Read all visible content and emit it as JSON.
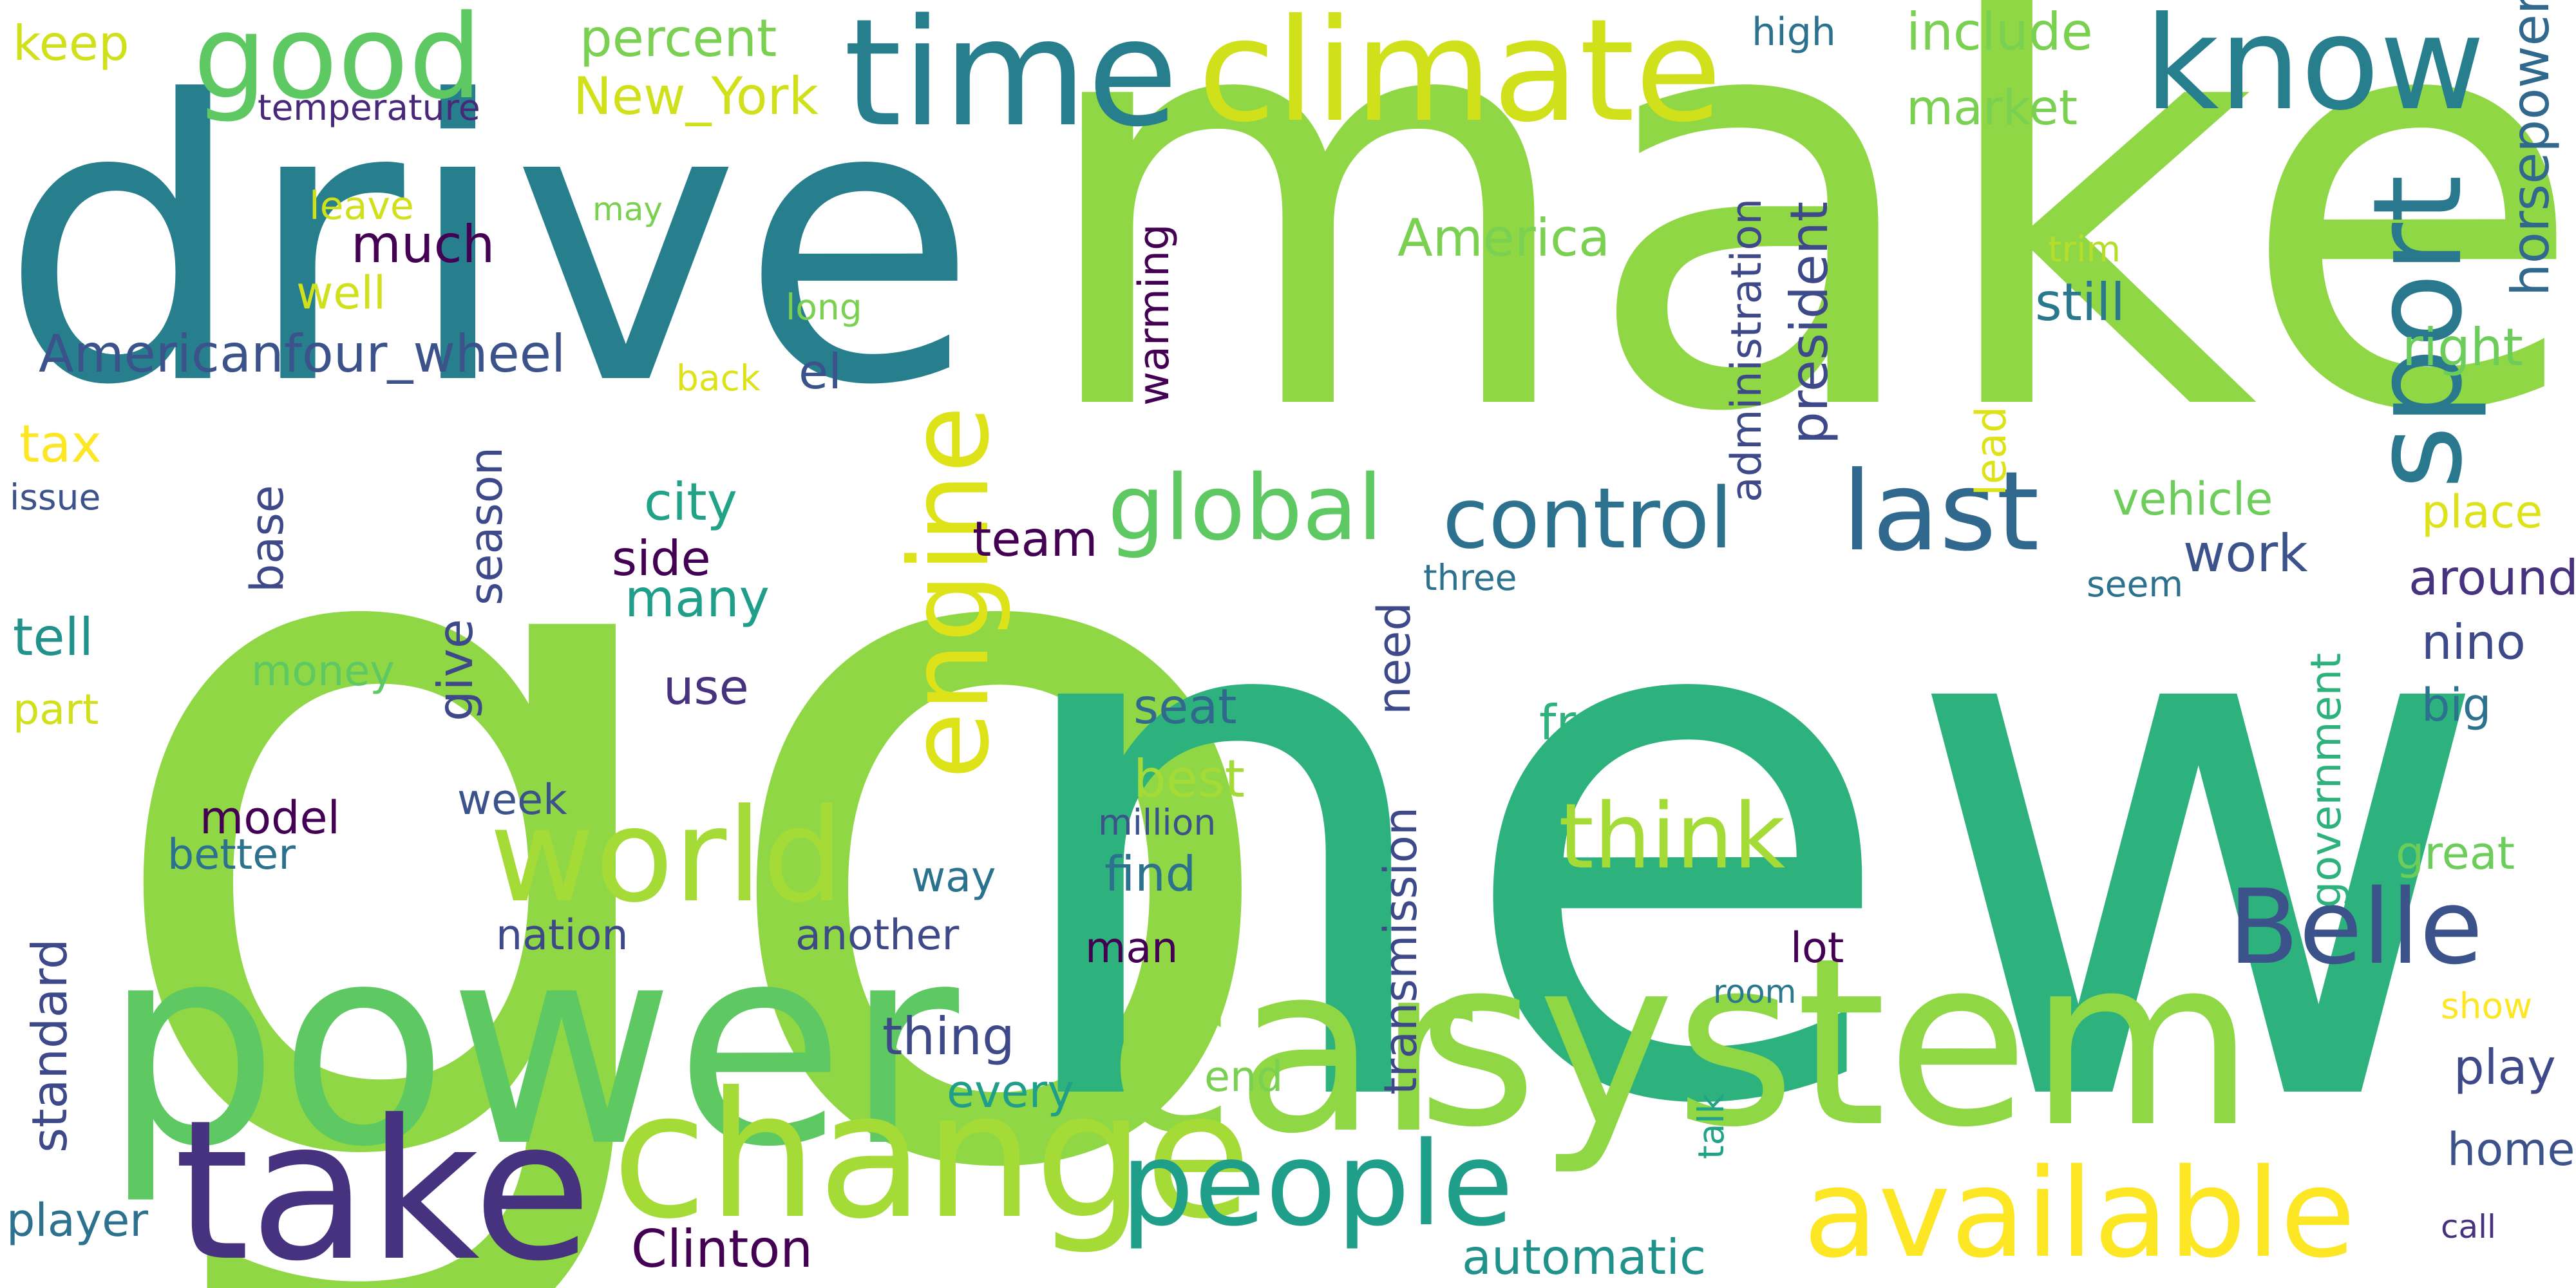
{
  "cloud": {
    "words": [
      {
        "text": "go",
        "color": "#8fd744",
        "orientation": "horizontal"
      },
      {
        "text": "new",
        "color": "#2db27d",
        "orientation": "horizontal"
      },
      {
        "text": "make",
        "color": "#8fd744",
        "orientation": "horizontal"
      },
      {
        "text": "drive",
        "color": "#277f8e",
        "orientation": "horizontal"
      },
      {
        "text": "power",
        "color": "#5ec962",
        "orientation": "horizontal"
      },
      {
        "text": "car",
        "color": "#8fd744",
        "orientation": "horizontal"
      },
      {
        "text": "system",
        "color": "#8fd744",
        "orientation": "horizontal"
      },
      {
        "text": "take",
        "color": "#46327e",
        "orientation": "horizontal"
      },
      {
        "text": "change",
        "color": "#a5db36",
        "orientation": "horizontal"
      },
      {
        "text": "climate",
        "color": "#d0e11c",
        "orientation": "horizontal"
      },
      {
        "text": "time",
        "color": "#277f8e",
        "orientation": "horizontal"
      },
      {
        "text": "good",
        "color": "#5ec962",
        "orientation": "horizontal"
      },
      {
        "text": "know",
        "color": "#277f8e",
        "orientation": "horizontal"
      },
      {
        "text": "world",
        "color": "#a5db36",
        "orientation": "horizontal"
      },
      {
        "text": "available",
        "color": "#fde725",
        "orientation": "horizontal"
      },
      {
        "text": "people",
        "color": "#1f9e89",
        "orientation": "horizontal"
      },
      {
        "text": "Belle",
        "color": "#3b528b",
        "orientation": "horizontal"
      },
      {
        "text": "sport",
        "color": "#2a788e",
        "orientation": "vertical"
      },
      {
        "text": "engine",
        "color": "#dde318",
        "orientation": "vertical"
      },
      {
        "text": "global",
        "color": "#5ec962",
        "orientation": "horizontal"
      },
      {
        "text": "control",
        "color": "#2c728e",
        "orientation": "horizontal"
      },
      {
        "text": "last",
        "color": "#31688e",
        "orientation": "horizontal"
      },
      {
        "text": "think",
        "color": "#a5db36",
        "orientation": "horizontal"
      },
      {
        "text": "keep",
        "color": "#d0e11c",
        "orientation": "horizontal"
      },
      {
        "text": "temperature",
        "color": "#482878",
        "orientation": "horizontal"
      },
      {
        "text": "percent",
        "color": "#7ad151",
        "orientation": "horizontal"
      },
      {
        "text": "New_York",
        "color": "#d0e11c",
        "orientation": "horizontal"
      },
      {
        "text": "high",
        "color": "#2c728e",
        "orientation": "horizontal"
      },
      {
        "text": "include",
        "color": "#7ad151",
        "orientation": "horizontal"
      },
      {
        "text": "market",
        "color": "#7ad151",
        "orientation": "horizontal"
      },
      {
        "text": "horsepower",
        "color": "#31688e",
        "orientation": "vertical"
      },
      {
        "text": "leave",
        "color": "#d0e11c",
        "orientation": "horizontal"
      },
      {
        "text": "may",
        "color": "#7ad151",
        "orientation": "horizontal"
      },
      {
        "text": "much",
        "color": "#440154",
        "orientation": "horizontal"
      },
      {
        "text": "well",
        "color": "#d0e11c",
        "orientation": "horizontal"
      },
      {
        "text": "America",
        "color": "#7ad151",
        "orientation": "horizontal"
      },
      {
        "text": "long",
        "color": "#7ad151",
        "orientation": "horizontal"
      },
      {
        "text": "warming",
        "color": "#440154",
        "orientation": "vertical"
      },
      {
        "text": "administration",
        "color": "#3e4989",
        "orientation": "vertical"
      },
      {
        "text": "president",
        "color": "#3e4989",
        "orientation": "vertical"
      },
      {
        "text": "trim",
        "color": "#b5de2b",
        "orientation": "horizontal"
      },
      {
        "text": "still",
        "color": "#2a788e",
        "orientation": "horizontal"
      },
      {
        "text": "right",
        "color": "#6ccd5a",
        "orientation": "horizontal"
      },
      {
        "text": "Americanfour_wheel",
        "color": "#3b528b",
        "orientation": "horizontal"
      },
      {
        "text": "back",
        "color": "#dde318",
        "orientation": "horizontal"
      },
      {
        "text": "el",
        "color": "#3b528b",
        "orientation": "horizontal"
      },
      {
        "text": "lead",
        "color": "#dde318",
        "orientation": "vertical"
      },
      {
        "text": "tax",
        "color": "#fde725",
        "orientation": "horizontal"
      },
      {
        "text": "issue",
        "color": "#3b528b",
        "orientation": "horizontal"
      },
      {
        "text": "base",
        "color": "#3e4989",
        "orientation": "vertical"
      },
      {
        "text": "season",
        "color": "#3e4989",
        "orientation": "vertical"
      },
      {
        "text": "city",
        "color": "#20a386",
        "orientation": "horizontal"
      },
      {
        "text": "side",
        "color": "#440154",
        "orientation": "horizontal"
      },
      {
        "text": "many",
        "color": "#1f9e89",
        "orientation": "horizontal"
      },
      {
        "text": "team",
        "color": "#440154",
        "orientation": "horizontal"
      },
      {
        "text": "vehicle",
        "color": "#6ccd5a",
        "orientation": "horizontal"
      },
      {
        "text": "place",
        "color": "#dde318",
        "orientation": "horizontal"
      },
      {
        "text": "three",
        "color": "#2c728e",
        "orientation": "horizontal"
      },
      {
        "text": "seem",
        "color": "#2c728e",
        "orientation": "horizontal"
      },
      {
        "text": "work",
        "color": "#3b528b",
        "orientation": "horizontal"
      },
      {
        "text": "around",
        "color": "#46327e",
        "orientation": "horizontal"
      },
      {
        "text": "tell",
        "color": "#21918c",
        "orientation": "horizontal"
      },
      {
        "text": "give",
        "color": "#3e4989",
        "orientation": "vertical"
      },
      {
        "text": "money",
        "color": "#5ec962",
        "orientation": "horizontal"
      },
      {
        "text": "use",
        "color": "#46327e",
        "orientation": "horizontal"
      },
      {
        "text": "need",
        "color": "#3e4989",
        "orientation": "vertical"
      },
      {
        "text": "nino",
        "color": "#3e4989",
        "orientation": "horizontal"
      },
      {
        "text": "big",
        "color": "#2c728e",
        "orientation": "horizontal"
      },
      {
        "text": "part",
        "color": "#d0e11c",
        "orientation": "horizontal"
      },
      {
        "text": "seat",
        "color": "#31688e",
        "orientation": "horizontal"
      },
      {
        "text": "front",
        "color": "#2db27d",
        "orientation": "horizontal"
      },
      {
        "text": "government",
        "color": "#2db27d",
        "orientation": "vertical"
      },
      {
        "text": "best",
        "color": "#a5db36",
        "orientation": "horizontal"
      },
      {
        "text": "million",
        "color": "#3b528b",
        "orientation": "horizontal"
      },
      {
        "text": "week",
        "color": "#3b528b",
        "orientation": "horizontal"
      },
      {
        "text": "model",
        "color": "#440154",
        "orientation": "horizontal"
      },
      {
        "text": "better",
        "color": "#2c728e",
        "orientation": "horizontal"
      },
      {
        "text": "transmission",
        "color": "#3e4989",
        "orientation": "vertical"
      },
      {
        "text": "great",
        "color": "#6ccd5a",
        "orientation": "horizontal"
      },
      {
        "text": "way",
        "color": "#2c728e",
        "orientation": "horizontal"
      },
      {
        "text": "find",
        "color": "#2c728e",
        "orientation": "horizontal"
      },
      {
        "text": "standard",
        "color": "#3e4989",
        "orientation": "vertical"
      },
      {
        "text": "nation",
        "color": "#3e4989",
        "orientation": "horizontal"
      },
      {
        "text": "another",
        "color": "#3e4989",
        "orientation": "horizontal"
      },
      {
        "text": "man",
        "color": "#440154",
        "orientation": "horizontal"
      },
      {
        "text": "lot",
        "color": "#440154",
        "orientation": "horizontal"
      },
      {
        "text": "room",
        "color": "#2a788e",
        "orientation": "horizontal"
      },
      {
        "text": "show",
        "color": "#fde725",
        "orientation": "horizontal"
      },
      {
        "text": "thing",
        "color": "#3e4989",
        "orientation": "horizontal"
      },
      {
        "text": "every",
        "color": "#1f9e89",
        "orientation": "horizontal"
      },
      {
        "text": "end",
        "color": "#7ad151",
        "orientation": "horizontal"
      },
      {
        "text": "play",
        "color": "#3e4989",
        "orientation": "horizontal"
      },
      {
        "text": "talk",
        "color": "#20a386",
        "orientation": "vertical"
      },
      {
        "text": "home",
        "color": "#3b528b",
        "orientation": "horizontal"
      },
      {
        "text": "player",
        "color": "#2c728e",
        "orientation": "horizontal"
      },
      {
        "text": "Clinton",
        "color": "#440154",
        "orientation": "horizontal"
      },
      {
        "text": "automatic",
        "color": "#21918c",
        "orientation": "horizontal"
      },
      {
        "text": "call",
        "color": "#46327e",
        "orientation": "horizontal"
      }
    ]
  }
}
